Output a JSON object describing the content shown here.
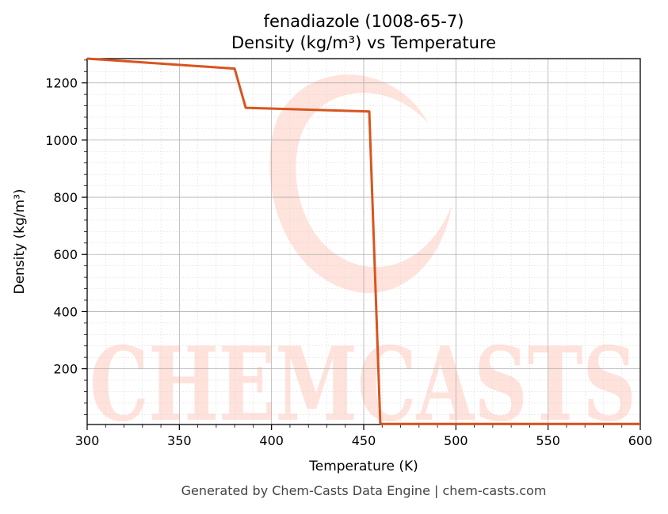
{
  "chart_data": {
    "type": "line",
    "title": "fenadiazole (1008-65-7)",
    "subtitle": "Density (kg/m³) vs Temperature",
    "xlabel": "Temperature (K)",
    "ylabel": "Density (kg/m³)",
    "xlim": [
      300,
      600
    ],
    "ylim": [
      5,
      1285
    ],
    "xticks": [
      300,
      350,
      400,
      450,
      500,
      550,
      600
    ],
    "yticks": [
      200,
      400,
      600,
      800,
      1000,
      1200
    ],
    "grid": true,
    "series": [
      {
        "color": "#d9541e",
        "x": [
          300,
          380,
          386,
          453,
          459,
          460,
          600
        ],
        "y": [
          1285,
          1250,
          1113,
          1100,
          10,
          7,
          7
        ]
      }
    ]
  },
  "watermark": {
    "text": "CHEMCASTS",
    "color": "#ffd9d0"
  },
  "footer": "Generated by Chem-Casts Data Engine | chem-casts.com"
}
